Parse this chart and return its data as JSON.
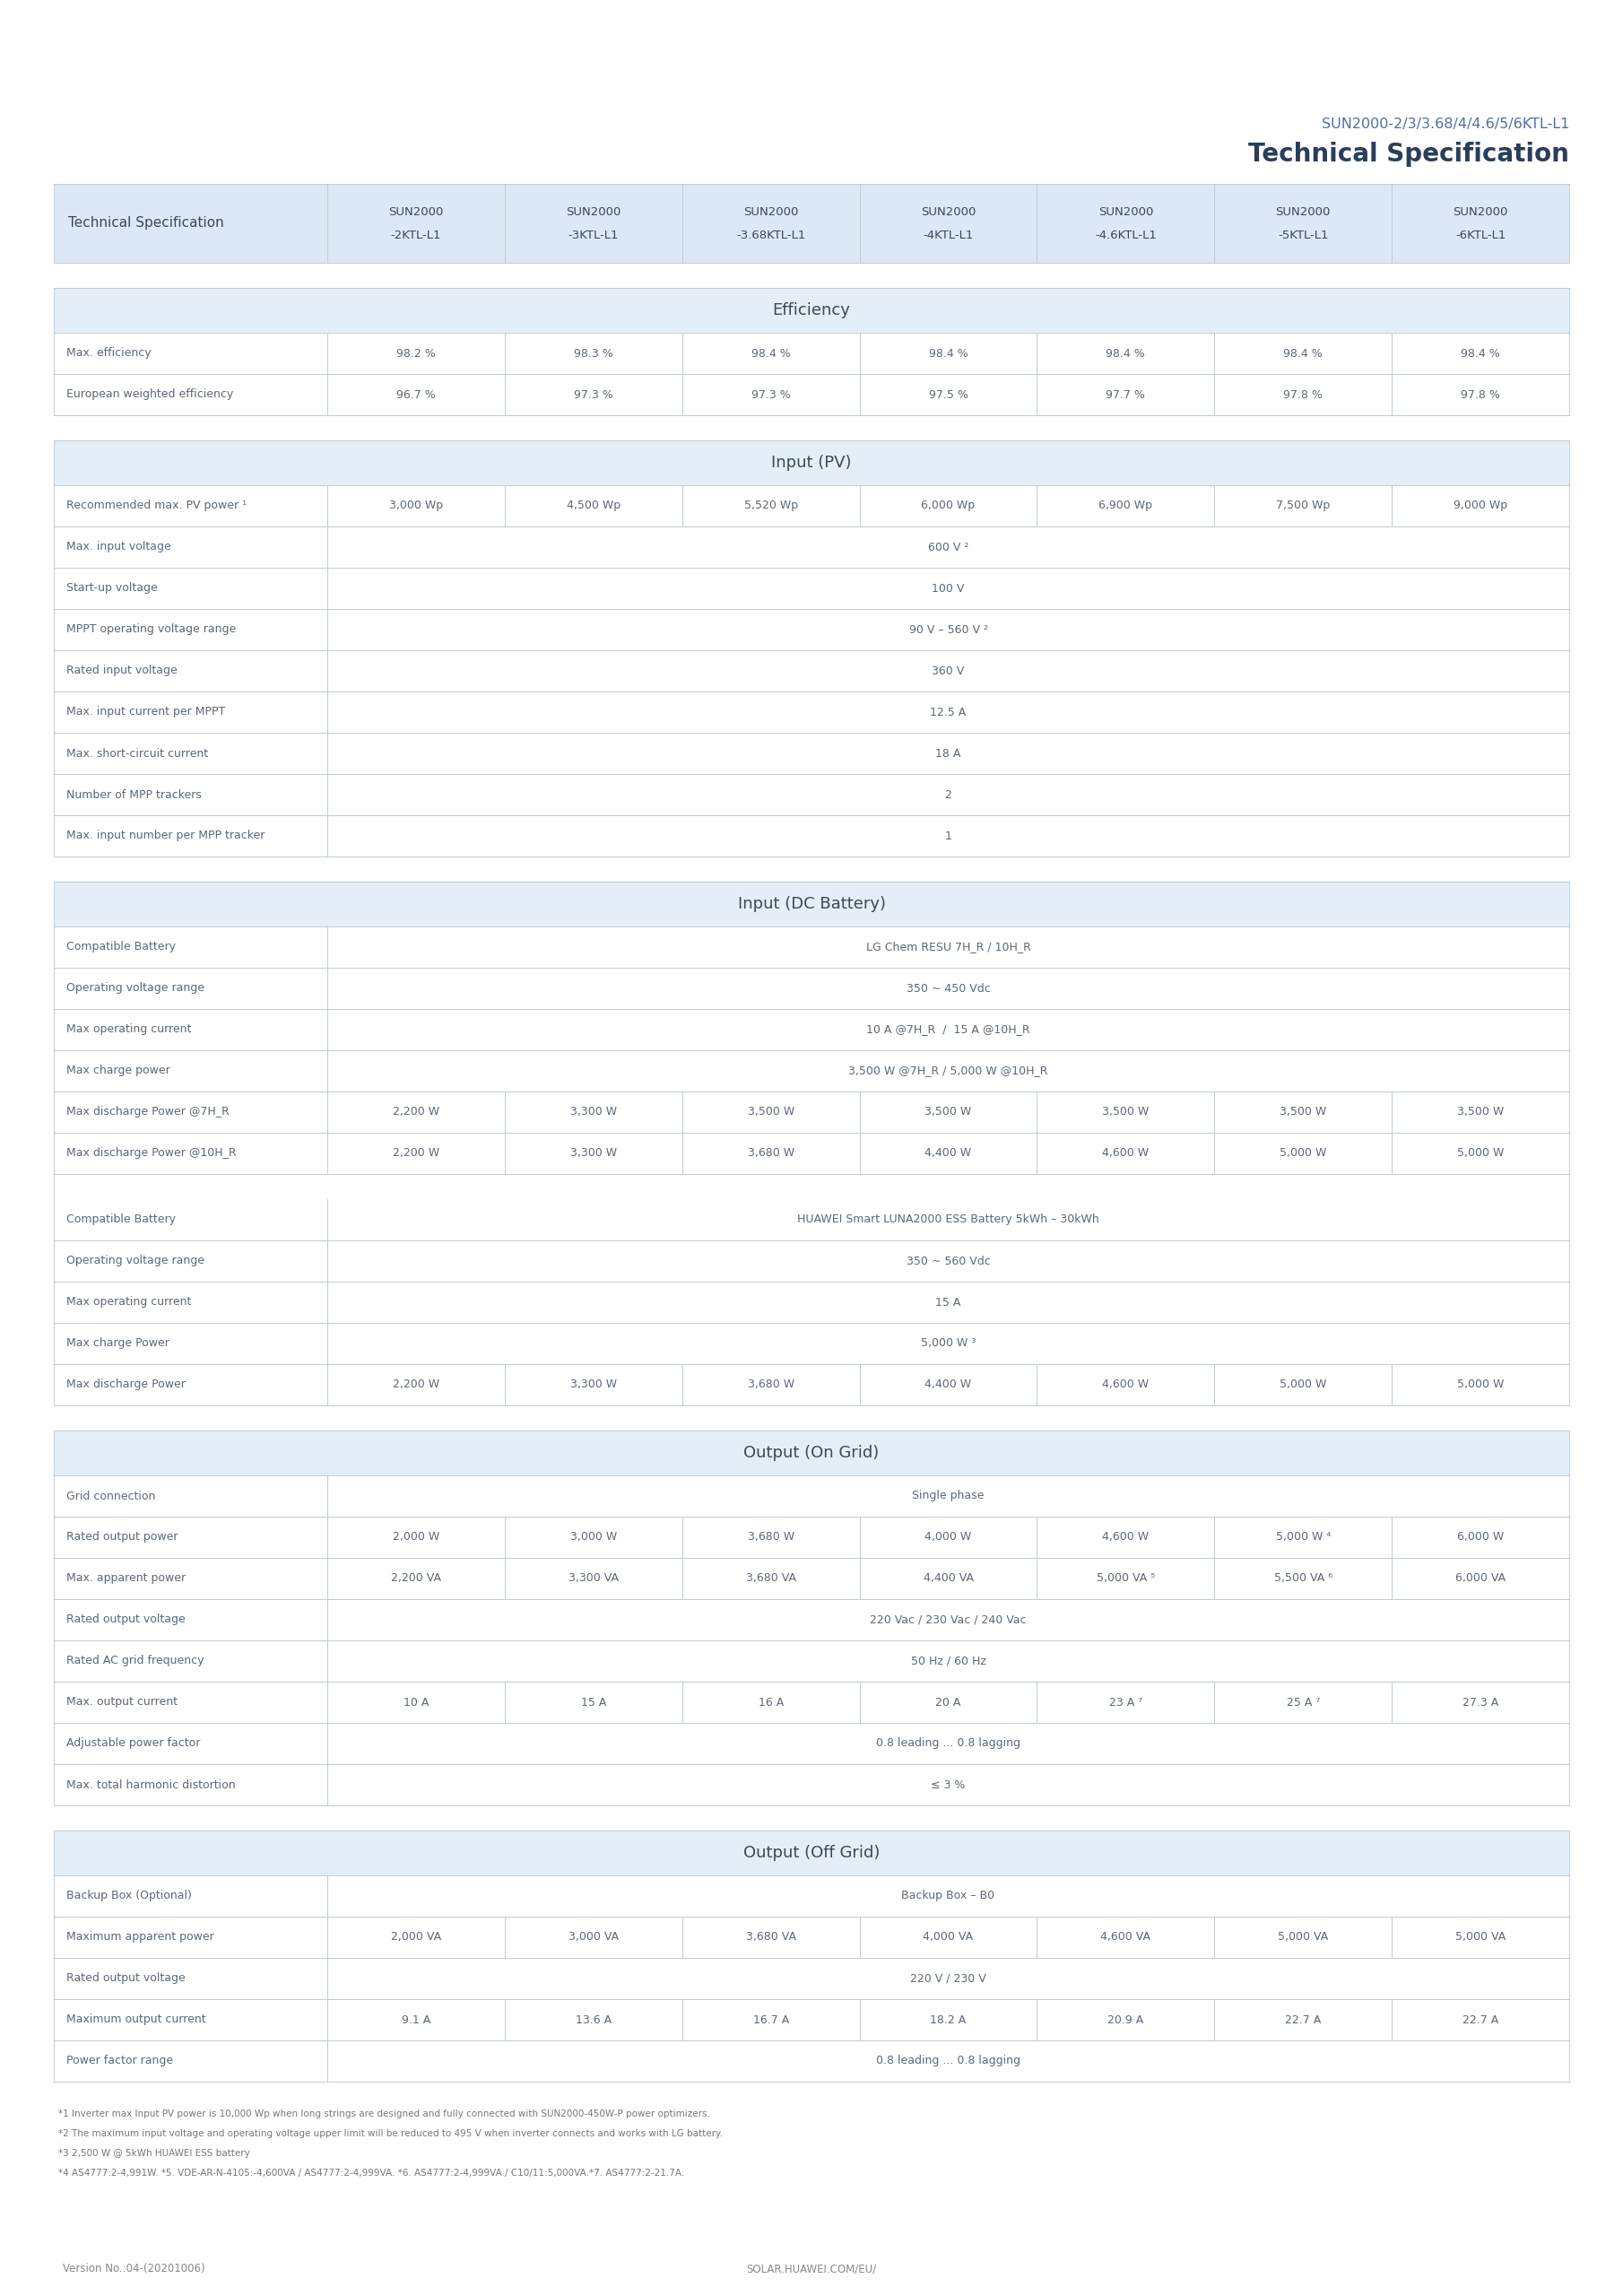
{
  "title_line1": "SUN2000-2/3/3.68/4/4.6/5/6KTL-L1",
  "title_line2": "Technical Specification",
  "header_bg": "#dce8f5",
  "section_bg": "#e4eef8",
  "row_bg": "#ffffff",
  "text_color": "#5a6878",
  "header_text_color": "#3a4858",
  "line_color": "#c0ccd8",
  "columns": [
    "Technical Specification",
    "SUN2000\n-2KTL-L1",
    "SUN2000\n-3KTL-L1",
    "SUN2000\n-3.68KTL-L1",
    "SUN2000\n-4KTL-L1",
    "SUN2000\n-4.6KTL-L1",
    "SUN2000\n-5KTL-L1",
    "SUN2000\n-6KTL-L1"
  ],
  "sections": [
    {
      "title": "Efficiency",
      "rows": [
        {
          "label": "Max. efficiency",
          "values": [
            "98.2 %",
            "98.3 %",
            "98.4 %",
            "98.4 %",
            "98.4 %",
            "98.4 %",
            "98.4 %"
          ]
        },
        {
          "label": "European weighted efficiency",
          "values": [
            "96.7 %",
            "97.3 %",
            "97.3 %",
            "97.5 %",
            "97.7 %",
            "97.8 %",
            "97.8 %"
          ]
        }
      ]
    },
    {
      "title": "Input (PV)",
      "rows": [
        {
          "label": "Recommended max. PV power ¹",
          "values": [
            "3,000 Wp",
            "4,500 Wp",
            "5,520 Wp",
            "6,000 Wp",
            "6,900 Wp",
            "7,500 Wp",
            "9,000 Wp"
          ]
        },
        {
          "label": "Max. input voltage",
          "values": [
            "600 V ²",
            null,
            null,
            null,
            null,
            null,
            null
          ]
        },
        {
          "label": "Start-up voltage",
          "values": [
            "100 V",
            null,
            null,
            null,
            null,
            null,
            null
          ]
        },
        {
          "label": "MPPT operating voltage range",
          "values": [
            "90 V – 560 V ²",
            null,
            null,
            null,
            null,
            null,
            null
          ]
        },
        {
          "label": "Rated input voltage",
          "values": [
            "360 V",
            null,
            null,
            null,
            null,
            null,
            null
          ]
        },
        {
          "label": "Max. input current per MPPT",
          "values": [
            "12.5 A",
            null,
            null,
            null,
            null,
            null,
            null
          ]
        },
        {
          "label": "Max. short-circuit current",
          "values": [
            "18 A",
            null,
            null,
            null,
            null,
            null,
            null
          ]
        },
        {
          "label": "Number of MPP trackers",
          "values": [
            "2",
            null,
            null,
            null,
            null,
            null,
            null
          ]
        },
        {
          "label": "Max. input number per MPP tracker",
          "values": [
            "1",
            null,
            null,
            null,
            null,
            null,
            null
          ]
        }
      ]
    },
    {
      "title": "Input (DC Battery)",
      "subsections": [
        {
          "rows": [
            {
              "label": "Compatible Battery",
              "values": [
                "LG Chem RESU 7H_R / 10H_R",
                null,
                null,
                null,
                null,
                null,
                null
              ]
            },
            {
              "label": "Operating voltage range",
              "values": [
                "350 ~ 450 Vdc",
                null,
                null,
                null,
                null,
                null,
                null
              ]
            },
            {
              "label": "Max operating current",
              "values": [
                "10 A @7H_R  /  15 A @10H_R",
                null,
                null,
                null,
                null,
                null,
                null
              ]
            },
            {
              "label": "Max charge power",
              "values": [
                "3,500 W @7H_R / 5,000 W @10H_R",
                null,
                null,
                null,
                null,
                null,
                null
              ]
            },
            {
              "label": "Max discharge Power @7H_R",
              "values": [
                "2,200 W",
                "3,300 W",
                "3,500 W",
                "3,500 W",
                "3,500 W",
                "3,500 W",
                "3,500 W"
              ]
            },
            {
              "label": "Max discharge Power @10H_R",
              "values": [
                "2,200 W",
                "3,300 W",
                "3,680 W",
                "4,400 W",
                "4,600 W",
                "5,000 W",
                "5,000 W"
              ]
            }
          ]
        },
        {
          "rows": [
            {
              "label": "Compatible Battery",
              "values": [
                "HUAWEI Smart LUNA2000 ESS Battery 5kWh – 30kWh",
                null,
                null,
                null,
                null,
                null,
                null
              ]
            },
            {
              "label": "Operating voltage range",
              "values": [
                "350 ~ 560 Vdc",
                null,
                null,
                null,
                null,
                null,
                null
              ]
            },
            {
              "label": "Max operating current",
              "values": [
                "15 A",
                null,
                null,
                null,
                null,
                null,
                null
              ]
            },
            {
              "label": "Max charge Power",
              "values": [
                "5,000 W ³",
                null,
                null,
                null,
                null,
                null,
                null
              ]
            },
            {
              "label": "Max discharge Power",
              "values": [
                "2,200 W",
                "3,300 W",
                "3,680 W",
                "4,400 W",
                "4,600 W",
                "5,000 W",
                "5,000 W"
              ]
            }
          ]
        }
      ]
    },
    {
      "title": "Output (On Grid)",
      "rows": [
        {
          "label": "Grid connection",
          "values": [
            "Single phase",
            null,
            null,
            null,
            null,
            null,
            null
          ]
        },
        {
          "label": "Rated output power",
          "values": [
            "2,000 W",
            "3,000 W",
            "3,680 W",
            "4,000 W",
            "4,600 W",
            "5,000 W ⁴",
            "6,000 W"
          ]
        },
        {
          "label": "Max. apparent power",
          "values": [
            "2,200 VA",
            "3,300 VA",
            "3,680 VA",
            "4,400 VA",
            "5,000 VA ⁵",
            "5,500 VA ⁶",
            "6,000 VA"
          ]
        },
        {
          "label": "Rated output voltage",
          "values": [
            "220 Vac / 230 Vac / 240 Vac",
            null,
            null,
            null,
            null,
            null,
            null
          ]
        },
        {
          "label": "Rated AC grid frequency",
          "values": [
            "50 Hz / 60 Hz",
            null,
            null,
            null,
            null,
            null,
            null
          ]
        },
        {
          "label": "Max. output current",
          "values": [
            "10 A",
            "15 A",
            "16 A",
            "20 A",
            "23 A ⁷",
            "25 A ⁷",
            "27.3 A"
          ]
        },
        {
          "label": "Adjustable power factor",
          "values": [
            "0.8 leading ... 0.8 lagging",
            null,
            null,
            null,
            null,
            null,
            null
          ]
        },
        {
          "label": "Max. total harmonic distortion",
          "values": [
            "≤ 3 %",
            null,
            null,
            null,
            null,
            null,
            null
          ]
        }
      ]
    },
    {
      "title": "Output (Off Grid)",
      "rows": [
        {
          "label": "Backup Box (Optional)",
          "values": [
            "Backup Box – B0",
            null,
            null,
            null,
            null,
            null,
            null
          ]
        },
        {
          "label": "Maximum apparent power",
          "values": [
            "2,000 VA",
            "3,000 VA",
            "3,680 VA",
            "4,000 VA",
            "4,600 VA",
            "5,000 VA",
            "5,000 VA"
          ]
        },
        {
          "label": "Rated output voltage",
          "values": [
            "220 V / 230 V",
            null,
            null,
            null,
            null,
            null,
            null
          ]
        },
        {
          "label": "Maximum output current",
          "values": [
            "9.1 A",
            "13.6 A",
            "16.7 A",
            "18.2 A",
            "20.9 A",
            "22.7 A",
            "22.7 A"
          ]
        },
        {
          "label": "Power factor range",
          "values": [
            "0.8 leading ... 0.8 lagging",
            null,
            null,
            null,
            null,
            null,
            null
          ]
        }
      ]
    }
  ],
  "footnotes": [
    "*1 Inverter max Input PV power is 10,000 Wp when long strings are designed and fully connected with SUN2000-450W-P power optimizers.",
    "*2 The maximum input voltage and operating voltage upper limit will be reduced to 495 V when inverter connects and works with LG battery.",
    "*3 2,500 W @ 5kWh HUAWEI ESS battery",
    "*4 AS4777:2-4,991W. *5. VDE-AR-N-4105:-4,600VA / AS4777:2-4,999VA. *6. AS4777:2-4,999VA / C10/11:5,000VA.*7. AS4777:2-21.7A."
  ],
  "footer_left": "Version No.:04-(20201006)",
  "footer_center": "SOLAR.HUAWEI.COM/EU/"
}
